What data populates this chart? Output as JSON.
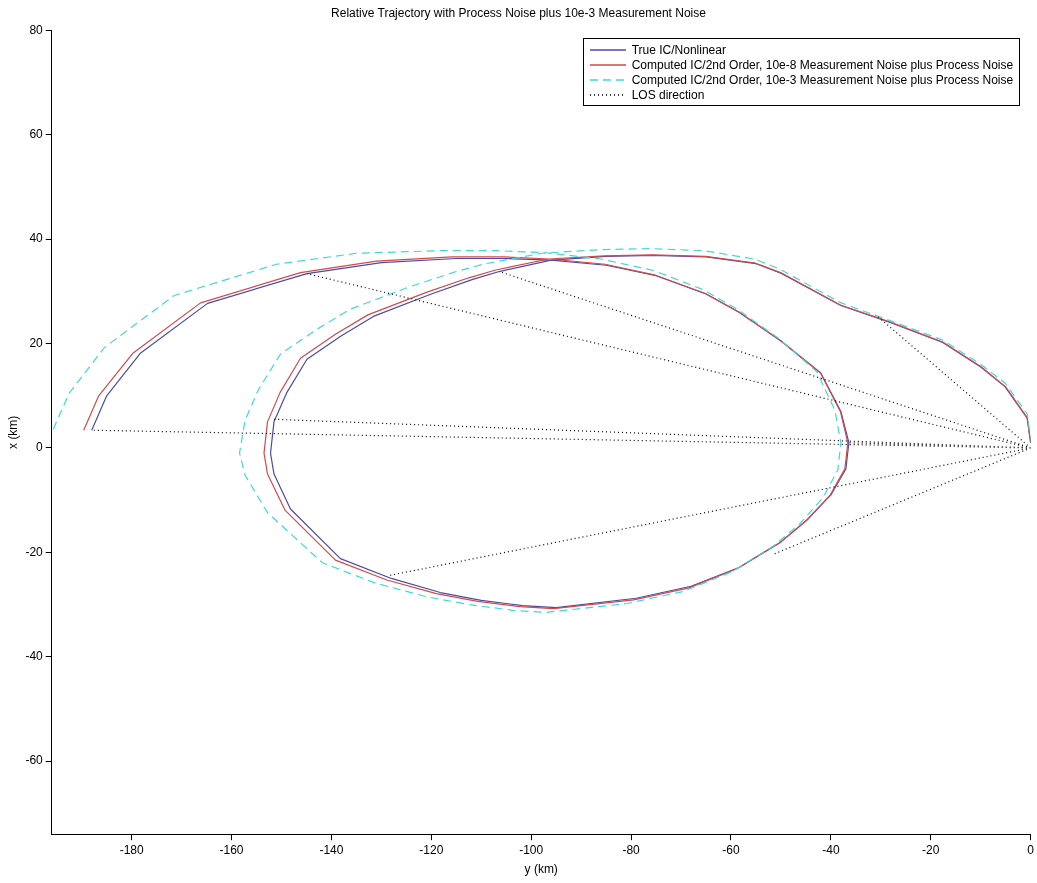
{
  "chart_data": {
    "type": "line",
    "title": "Relative Trajectory with Process Noise plus 10e-3 Measurement Noise",
    "xlabel": "y (km)",
    "ylabel": "x (km)",
    "xlim": [
      -196,
      0
    ],
    "xticks": [
      -180,
      -160,
      -140,
      -120,
      -100,
      -80,
      -60,
      -40,
      -20,
      0
    ],
    "ylim": [
      -74,
      80
    ],
    "yticks": [
      -60,
      -40,
      -20,
      0,
      20,
      40,
      60,
      80
    ],
    "grid": false,
    "legend": "top right",
    "marker": "none",
    "series": [
      {
        "name": "True IC/Nonlinear",
        "color": "#4b4ba8",
        "line_style": "solid",
        "x": [
          -188,
          -185,
          -178.2,
          -164.8,
          -144.9,
          -130,
          -115,
          -105,
          -96,
          -85,
          -75,
          -65,
          -58.4,
          -50,
          -42,
          -38,
          -36.4,
          -37,
          -40,
          -44.8,
          -50,
          -58.4,
          -68,
          -79,
          -95,
          -101.7,
          -110,
          -118.2,
          -128,
          -138.2,
          -148.2,
          -151.5,
          -152.2,
          -151.5,
          -149,
          -144.9,
          -138,
          -131.6,
          -120,
          -111.7,
          -106.4,
          -96,
          -85,
          -75.6,
          -65,
          -55,
          -50,
          -38,
          -28,
          -17.6,
          -10,
          -5.1,
          -0.7,
          0
        ],
        "values": [
          3.4,
          10,
          18.2,
          27.7,
          33.4,
          35.5,
          36.3,
          36.3,
          36,
          35,
          33,
          29.5,
          26,
          20.5,
          14.3,
          7,
          1,
          -4,
          -9,
          -13.8,
          -18,
          -22.9,
          -26.5,
          -28.8,
          -30.6,
          -30.2,
          -29.2,
          -27.7,
          -25,
          -21.2,
          -11.7,
          -5,
          -1,
          5,
          10.5,
          17,
          21.5,
          25.2,
          29.5,
          32.3,
          33.8,
          36,
          36.7,
          36.9,
          36.6,
          35.3,
          33.5,
          27.3,
          24,
          20.2,
          15.5,
          11.7,
          5.7,
          1
        ]
      },
      {
        "name": "Computed IC/2nd Order, 10e-8 Measurement Noise plus Process Noise",
        "color": "#d24a4a",
        "line_style": "solid",
        "x": [
          -189.6,
          -186.6,
          -179.7,
          -166.2,
          -146.2,
          -131,
          -115.8,
          -105.5,
          -96.3,
          -85.2,
          -75.1,
          -65.1,
          -58.5,
          -50.1,
          -42.1,
          -38.1,
          -36.6,
          -37.2,
          -40.2,
          -45,
          -50.3,
          -58.7,
          -68.4,
          -79.5,
          -95.5,
          -102.3,
          -110.7,
          -119,
          -128.9,
          -139.2,
          -149.3,
          -152.8,
          -153.5,
          -152.8,
          -150.3,
          -146.2,
          -139.2,
          -132.7,
          -121,
          -112.5,
          -107.1,
          -96.5,
          -85.3,
          -75.8,
          -65.1,
          -55.1,
          -50.1,
          -38.1,
          -28.1,
          -17.6,
          -10,
          -5.1,
          -0.7,
          0
        ],
        "values": [
          3.4,
          10,
          18.2,
          27.8,
          33.6,
          35.8,
          36.6,
          36.6,
          36.2,
          35.2,
          33.1,
          29.6,
          26.1,
          20.6,
          14.4,
          7,
          1,
          -4,
          -9.1,
          -14,
          -18.2,
          -23.1,
          -26.8,
          -29.1,
          -30.8,
          -30.4,
          -29.4,
          -27.9,
          -25.3,
          -21.5,
          -11.9,
          -5,
          -1,
          5,
          10.6,
          17.2,
          21.8,
          25.5,
          29.8,
          32.6,
          34.1,
          36.2,
          36.8,
          37,
          36.7,
          35.4,
          33.6,
          27.4,
          24.1,
          20.3,
          15.6,
          11.8,
          5.8,
          1
        ]
      },
      {
        "name": "Computed IC/2nd Order, 10e-3 Measurement Noise plus Process Noise",
        "color": "#40d8d8",
        "line_style": "dashed",
        "x": [
          -195.7,
          -192.5,
          -185.5,
          -171.5,
          -151,
          -135,
          -118,
          -107,
          -97,
          -86,
          -75.5,
          -65.5,
          -58.8,
          -50.5,
          -42.8,
          -39.2,
          -38,
          -38.6,
          -41.5,
          -46.2,
          -51.5,
          -59.8,
          -69.6,
          -80.8,
          -97,
          -103.8,
          -112.4,
          -121,
          -131.2,
          -141.8,
          -152.8,
          -157.3,
          -158.4,
          -157.3,
          -154.6,
          -150.2,
          -142.8,
          -136.2,
          -124,
          -115,
          -109.2,
          -97.8,
          -86,
          -76.2,
          -65.4,
          -55.3,
          -50.3,
          -38.2,
          -28.2,
          -17.7,
          -10.1,
          -5.1,
          -0.7,
          0
        ],
        "values": [
          3.6,
          10.5,
          19.2,
          29.2,
          35.2,
          37.3,
          37.8,
          37.8,
          37.4,
          36.2,
          34,
          30.3,
          26.6,
          21,
          14.6,
          7.2,
          1,
          -4.2,
          -9.4,
          -14.5,
          -18.8,
          -23.7,
          -27.5,
          -29.8,
          -31.5,
          -31.1,
          -30,
          -28.5,
          -25.9,
          -22,
          -12.4,
          -5.2,
          -1,
          5.3,
          11.2,
          18,
          22.8,
          26.6,
          31,
          33.8,
          35.3,
          37.3,
          38,
          38.2,
          37.8,
          36.2,
          34.3,
          27.9,
          24.4,
          20.7,
          16.1,
          12.4,
          6.5,
          1.8
        ]
      },
      {
        "name": "LOS direction",
        "color": "#000000",
        "line_style": "dotted",
        "x": [
          0,
          -188,
          null,
          0,
          -144.9,
          null,
          0,
          -106.4,
          null,
          0,
          -151.6,
          null,
          0,
          -128.8,
          null,
          0,
          -51.6,
          null,
          0,
          -31,
          null,
          0,
          -36.4
        ],
        "values": [
          0,
          3.4,
          null,
          0,
          33.4,
          null,
          0,
          33.8,
          null,
          0,
          5.5,
          null,
          0,
          -24.5,
          null,
          0,
          -20.4,
          null,
          0,
          25.5,
          null,
          0,
          1
        ]
      }
    ]
  }
}
